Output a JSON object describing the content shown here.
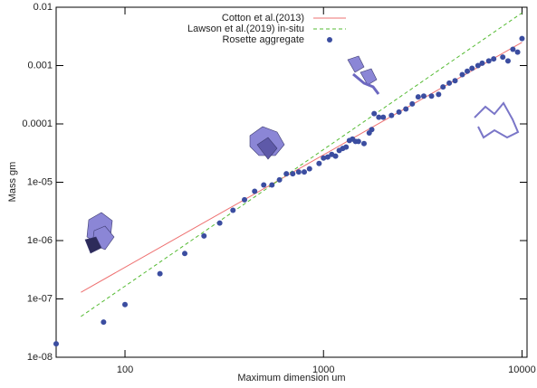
{
  "chart_data": {
    "type": "scatter",
    "x_label": "Maximum dimension um",
    "y_label": "Mass gm",
    "log_x": true,
    "log_y": true,
    "legend": "top-right",
    "xlim": [
      45,
      10600
    ],
    "ylim": [
      1e-08,
      0.01
    ],
    "xticks": [
      100,
      1000,
      10000
    ],
    "yticks": [
      {
        "value": 0.01,
        "label": "0.01"
      },
      {
        "value": 0.001,
        "label": "0.001"
      },
      {
        "value": 0.0001,
        "label": "0.0001"
      },
      {
        "value": 1e-05,
        "label": "1e-05"
      },
      {
        "value": 1e-06,
        "label": "1e-06"
      },
      {
        "value": 1e-07,
        "label": "1e-07"
      },
      {
        "value": 1e-08,
        "label": "1e-08"
      }
    ],
    "series": [
      {
        "name": "Cotton et al.(2013)",
        "color": "#ee7070",
        "mode": "line",
        "dashed": false,
        "x": [
          60,
          10000
        ],
        "values": [
          1.3e-07,
          0.0025
        ]
      },
      {
        "name": "Lawson et al.(2019) in-situ",
        "color": "#55bb33",
        "mode": "line",
        "dashed": true,
        "x": [
          60,
          10000
        ],
        "values": [
          5e-08,
          0.008
        ]
      },
      {
        "name": "Rosette aggregate",
        "color": "#3b4da0",
        "mode": "points",
        "dashed": false,
        "x": [
          45,
          78,
          100,
          150,
          200,
          250,
          300,
          350,
          400,
          450,
          500,
          550,
          600,
          650,
          700,
          750,
          800,
          850,
          950,
          1000,
          1050,
          1100,
          1150,
          1200,
          1250,
          1300,
          1350,
          1400,
          1450,
          1500,
          1600,
          1700,
          1750,
          1800,
          1900,
          2000,
          2200,
          2400,
          2600,
          2800,
          3000,
          3200,
          3500,
          3800,
          4000,
          4300,
          4600,
          5000,
          5300,
          5600,
          6000,
          6300,
          6800,
          7200,
          8000,
          8500,
          9000,
          9500,
          10000
        ],
        "values": [
          1.7e-08,
          4e-08,
          8e-08,
          2.7e-07,
          6e-07,
          1.2e-06,
          2e-06,
          3.3e-06,
          5e-06,
          7e-06,
          9e-06,
          9e-06,
          1.1e-05,
          1.4e-05,
          1.4e-05,
          1.5e-05,
          1.5e-05,
          1.7e-05,
          2.1e-05,
          2.6e-05,
          2.7e-05,
          3e-05,
          2.8e-05,
          3.5e-05,
          3.8e-05,
          4e-05,
          5.2e-05,
          5.5e-05,
          5e-05,
          5e-05,
          4.6e-05,
          7e-05,
          8e-05,
          0.00015,
          0.00013,
          0.00013,
          0.00014,
          0.00016,
          0.00018,
          0.00022,
          0.00029,
          0.0003,
          0.0003,
          0.00032,
          0.00043,
          0.0005,
          0.00055,
          0.0007,
          0.0008,
          0.0009,
          0.001,
          0.0011,
          0.0012,
          0.0013,
          0.0014,
          0.0012,
          0.0019,
          0.0017,
          0.0029
        ]
      }
    ]
  }
}
